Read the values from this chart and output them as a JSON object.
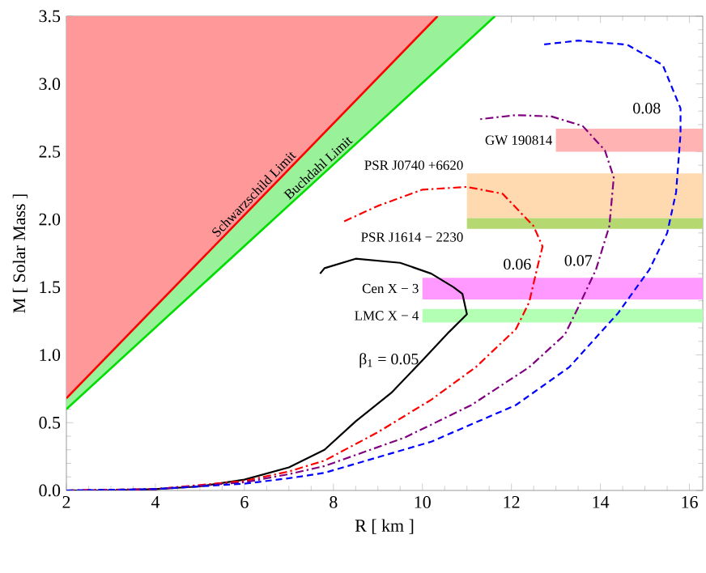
{
  "chart_data": {
    "type": "line",
    "xlabel": "R  [ km ]",
    "ylabel": "M  [ Solar Mass ]",
    "xlim": [
      2,
      16.3
    ],
    "ylim": [
      0,
      3.5
    ],
    "xticks": [
      2,
      4,
      6,
      8,
      10,
      12,
      14,
      16
    ],
    "yticks": [
      {
        "value": 0,
        "label": "0.0"
      },
      0.5,
      {
        "value": 1,
        "label": "1.0"
      },
      1.5,
      {
        "value": 2,
        "label": "2.0"
      },
      2.5,
      {
        "value": 3,
        "label": "3.0"
      },
      3.5
    ],
    "series": [
      {
        "name": "Schwarzschild Limit",
        "color": "#ff0000",
        "x": [
          2,
          10.34
        ],
        "values": [
          0.68,
          3.5
        ],
        "lower": [
          0.68,
          3.5
        ],
        "upper": [
          3.5,
          3.5
        ]
      },
      {
        "name": "Buchdahl Limit",
        "color": "#00dd00",
        "x": [
          2,
          10.34,
          11.63
        ],
        "values": [
          0.6,
          3.11,
          3.5
        ],
        "lower": [
          0.6,
          3.11,
          3.5
        ],
        "upper": [
          0.68,
          3.5,
          3.5
        ]
      },
      {
        "name": "β$_{1}$ = 0.05",
        "color": "#000000",
        "line_style": "solid",
        "x": [
          2,
          3,
          4,
          5,
          6,
          7,
          7.8,
          8.5,
          9.3,
          10,
          10.6,
          11,
          10.9,
          10.7,
          10.2,
          9.5,
          8.5,
          7.8,
          7.7
        ],
        "values": [
          0,
          0,
          0.01,
          0.03,
          0.08,
          0.17,
          0.3,
          0.51,
          0.72,
          0.96,
          1.17,
          1.3,
          1.45,
          1.5,
          1.6,
          1.68,
          1.71,
          1.64,
          1.6
        ]
      },
      {
        "name": "0.06",
        "color": "#ff0000",
        "line_style": "dashdot",
        "x": [
          2,
          4,
          6,
          7,
          7.8,
          9,
          10.2,
          11.2,
          12.1,
          12.4,
          12.6,
          12.7,
          12.5,
          11.8,
          11,
          10,
          9,
          8.2
        ],
        "values": [
          0,
          0.01,
          0.07,
          0.14,
          0.22,
          0.43,
          0.67,
          0.91,
          1.19,
          1.39,
          1.67,
          1.8,
          1.95,
          2.19,
          2.24,
          2.22,
          2.1,
          1.98
        ]
      },
      {
        "name": "0.07",
        "color": "#800080",
        "line_style": "dashdot",
        "x": [
          2,
          4,
          6,
          7,
          7.8,
          9.6,
          11.1,
          12.4,
          13.2,
          13.5,
          13.9,
          14.2,
          14.3,
          14.1,
          13.6,
          12.9,
          12.1,
          11.3
        ],
        "values": [
          0,
          0.01,
          0.06,
          0.12,
          0.18,
          0.39,
          0.63,
          0.91,
          1.15,
          1.35,
          1.63,
          1.95,
          2.31,
          2.51,
          2.69,
          2.76,
          2.77,
          2.74
        ]
      },
      {
        "name": "0.08",
        "color": "#0000ff",
        "line_style": "dashed",
        "x": [
          2,
          4,
          6,
          7,
          7.8,
          10.2,
          12.1,
          13.3,
          14.4,
          15.1,
          15.5,
          15.7,
          15.8,
          15.8,
          15.4,
          14.6,
          13.5,
          12.7
        ],
        "values": [
          0,
          0.01,
          0.05,
          0.09,
          0.13,
          0.36,
          0.63,
          0.91,
          1.31,
          1.63,
          1.9,
          2.2,
          2.63,
          2.82,
          3.14,
          3.29,
          3.32,
          3.29
        ]
      }
    ],
    "bands": [
      {
        "axis": "y",
        "from": 2.5,
        "to": 2.67,
        "label": "GW 190814",
        "color": "#ffb3b3"
      },
      {
        "axis": "y",
        "from": 2.01,
        "to": 2.34,
        "label": "PSR J0740 +6620",
        "color": "#ffd9b0"
      },
      {
        "axis": "y",
        "from": 1.93,
        "to": 2.01,
        "label": "PSR J1614 − 2230",
        "color": "#b5d870"
      },
      {
        "axis": "y",
        "from": 1.41,
        "to": 1.57,
        "label": "Cen X − 3",
        "color": "#ff99ff"
      },
      {
        "axis": "y",
        "from": 1.24,
        "to": 1.34,
        "label": "LMC X − 4",
        "color": "#b3ffb3"
      }
    ]
  }
}
